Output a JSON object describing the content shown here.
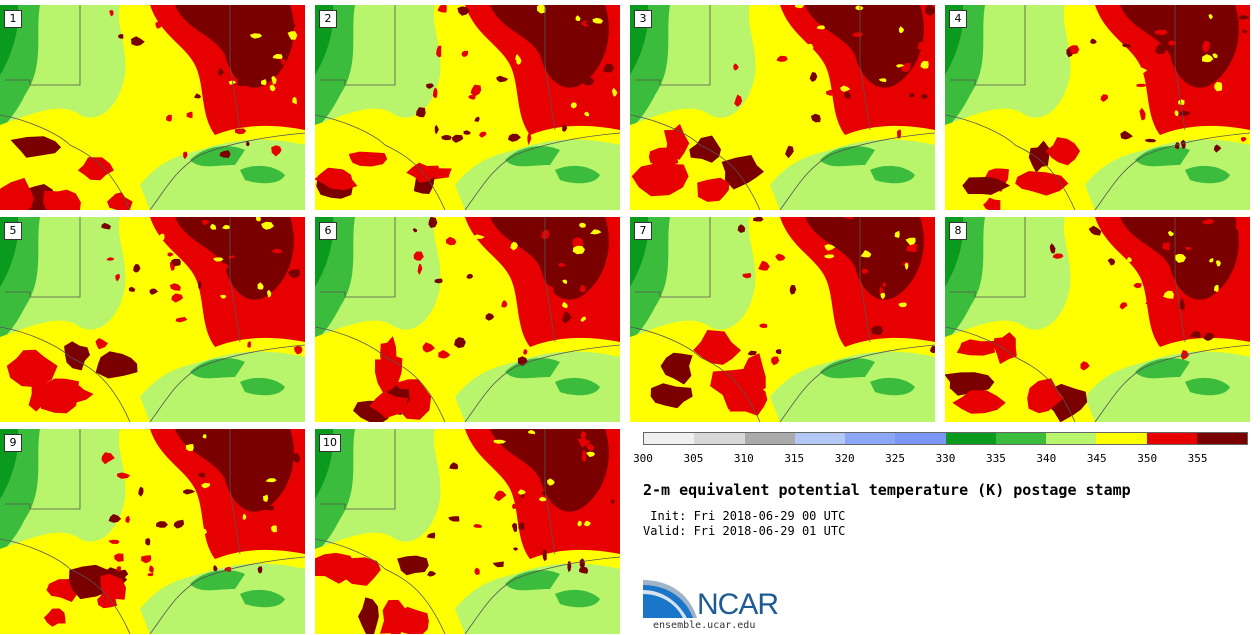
{
  "panels": [
    {
      "label": "1"
    },
    {
      "label": "2"
    },
    {
      "label": "3"
    },
    {
      "label": "4"
    },
    {
      "label": "5"
    },
    {
      "label": "6"
    },
    {
      "label": "7"
    },
    {
      "label": "8"
    },
    {
      "label": "9"
    },
    {
      "label": "10"
    }
  ],
  "colors": {
    "field_base": "#b8f46c",
    "dark_green": "#0a9a1e",
    "green": "#3cbc3c",
    "yellow": "#ffff00",
    "red": "#e60000",
    "dark_red": "#7a0000",
    "boundary": "#555555"
  },
  "colorbar": {
    "segments": [
      "#f0f0f0",
      "#d8d8d8",
      "#aaaaaa",
      "#b4c8f6",
      "#8ca6f8",
      "#7c96f8",
      "#0a9a1e",
      "#3cbc3c",
      "#b8f46c",
      "#ffff00",
      "#e60000",
      "#7a0000"
    ],
    "ticks": [
      "300",
      "305",
      "310",
      "315",
      "320",
      "325",
      "330",
      "335",
      "340",
      "345",
      "350",
      "355"
    ]
  },
  "title": "2-m equivalent potential temperature (K) postage stamp",
  "init": " Init: Fri 2018-06-29 00 UTC",
  "valid": "Valid: Fri 2018-06-29 01 UTC",
  "logo": {
    "name": "NCAR",
    "url": "ensemble.ucar.edu"
  }
}
